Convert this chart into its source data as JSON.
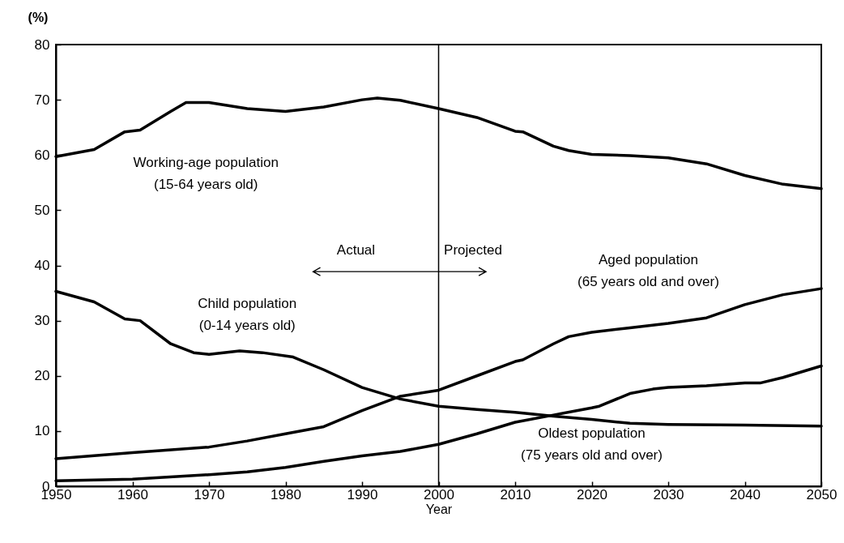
{
  "chart_data": {
    "type": "line",
    "xlabel": "Year",
    "ylabel": "(%)",
    "xlim": [
      1950,
      2050
    ],
    "xticks": [
      1950,
      1960,
      1970,
      1980,
      1990,
      2000,
      2010,
      2020,
      2030,
      2040,
      2050
    ],
    "ylim": [
      0,
      80
    ],
    "yticks": [
      0,
      10,
      20,
      30,
      40,
      50,
      60,
      70,
      80
    ],
    "grid": false,
    "marker": "none",
    "line_style": "solid",
    "series": [
      {
        "name": "Working-age population\n(15-64 years old)",
        "color": "#000000",
        "x": [
          1950,
          1955,
          1959,
          1961,
          1965,
          1967,
          1970,
          1975,
          1980,
          1985,
          1990,
          1992,
          1995,
          2000,
          2005,
          2010,
          2011,
          2015,
          2017,
          2020,
          2025,
          2030,
          2035,
          2040,
          2045,
          2050
        ],
        "values": [
          59.7,
          61,
          64.2,
          64.5,
          67.9,
          69.5,
          69.5,
          68.4,
          67.9,
          68.7,
          70,
          70.3,
          69.9,
          68.4,
          66.8,
          64.3,
          64.2,
          61.6,
          60.8,
          60.1,
          59.9,
          59.5,
          58.4,
          56.3,
          54.7,
          53.9
        ]
      },
      {
        "name": "Child population\n(0-14 years old)",
        "color": "#000000",
        "x": [
          1950,
          1955,
          1959,
          1961,
          1965,
          1968,
          1970,
          1974,
          1977,
          1981,
          1985,
          1990,
          1995,
          2000,
          2005,
          2010,
          2015,
          2020,
          2025,
          2030,
          2040,
          2050
        ],
        "values": [
          35.3,
          33.4,
          30.3,
          30,
          25.8,
          24.2,
          23.9,
          24.5,
          24.2,
          23.4,
          21.1,
          17.9,
          15.8,
          14.5,
          13.9,
          13.4,
          12.7,
          12.1,
          11.4,
          11.2,
          11.1,
          10.9
        ]
      },
      {
        "name": "Aged population\n(65 years old and over)",
        "color": "#000000",
        "x": [
          1950,
          1960,
          1970,
          1975,
          1980,
          1985,
          1990,
          1995,
          2000,
          2005,
          2010,
          2011,
          2015,
          2017,
          2020,
          2025,
          2030,
          2035,
          2040,
          2045,
          2050
        ],
        "values": [
          5.0,
          6.1,
          7.1,
          8.2,
          9.5,
          10.8,
          13.7,
          16.3,
          17.4,
          20,
          22.6,
          22.9,
          25.8,
          27.1,
          27.9,
          28.7,
          29.5,
          30.5,
          32.9,
          34.7,
          35.8
        ]
      },
      {
        "name": "Oldest population\n(75 years old and over)",
        "color": "#000000",
        "x": [
          1950,
          1960,
          1970,
          1975,
          1980,
          1985,
          1990,
          1995,
          2000,
          2005,
          2010,
          2015,
          2020,
          2021,
          2025,
          2028,
          2030,
          2035,
          2040,
          2042,
          2045,
          2050
        ],
        "values": [
          1.0,
          1.3,
          2.1,
          2.6,
          3.4,
          4.5,
          5.5,
          6.3,
          7.6,
          9.5,
          11.6,
          12.9,
          14.2,
          14.5,
          16.8,
          17.6,
          17.9,
          18.2,
          18.7,
          18.7,
          19.7,
          21.8
        ]
      }
    ],
    "ref_lines": [
      {
        "axis": "x",
        "value": 2000,
        "color": "#000000"
      }
    ],
    "annotations": [
      "Actual",
      "Projected"
    ]
  }
}
